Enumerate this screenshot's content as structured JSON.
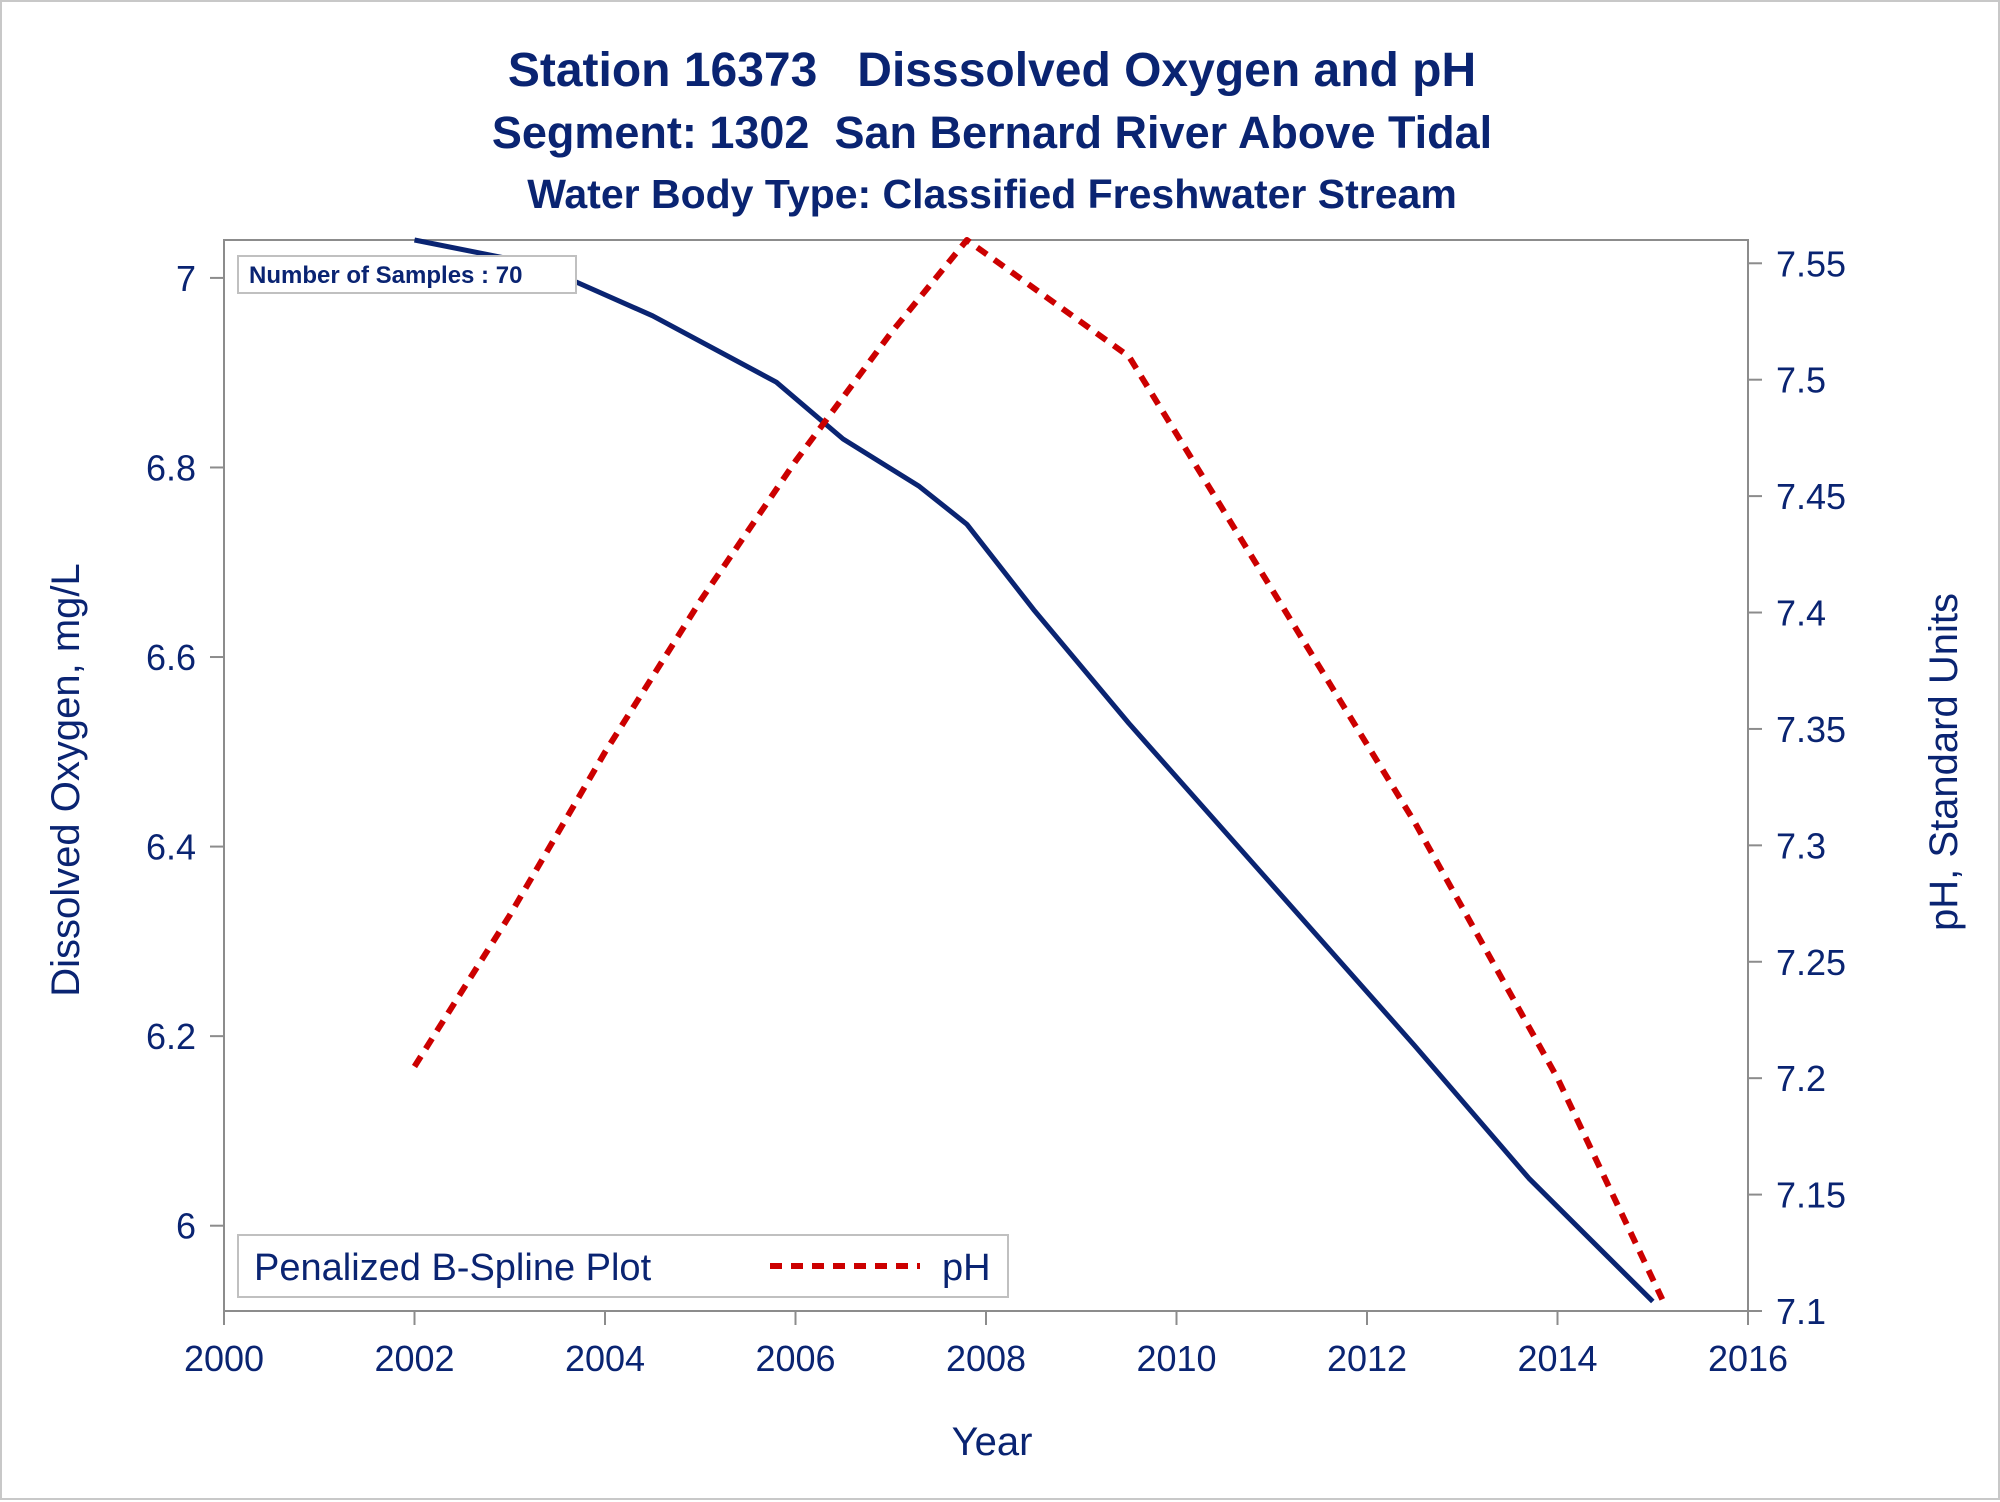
{
  "chart_data": {
    "type": "line",
    "title": "Station 16373   Disssolved Oxygen and pH",
    "subtitle": "Segment: 1302  San Bernard River Above Tidal",
    "subtitle2": "Water Body Type: Classified Freshwater Stream",
    "xlabel": "Year",
    "ylabel": "Dissolved Oxygen, mg/L",
    "y2label": "pH, Standard Units",
    "xlim": [
      2000,
      2016
    ],
    "xticks": [
      "2000",
      "2002",
      "2004",
      "2006",
      "2008",
      "2010",
      "2012",
      "2014",
      "2016"
    ],
    "ylim": [
      5.91,
      7.04
    ],
    "yticks": [
      "6",
      "6.2",
      "6.4",
      "6.6",
      "6.8",
      "7"
    ],
    "y2lim": [
      7.1,
      7.56
    ],
    "y2ticks": [
      "7.1",
      "7.15",
      "7.2",
      "7.25",
      "7.3",
      "7.35",
      "7.4",
      "7.45",
      "7.5",
      "7.55"
    ],
    "annotation": "Number of Samples : 70",
    "legend_position": "bottom-left",
    "legend": {
      "items": [
        {
          "label": "Penalized B-Spline Plot",
          "style": "text"
        },
        {
          "label": "pH",
          "style": "dashed",
          "color": "#cc0000"
        }
      ]
    },
    "series": [
      {
        "axis": "left",
        "color": "#0a2472",
        "style": "solid",
        "x": [
          2002,
          2003,
          2003.6,
          2004.5,
          2005.8,
          2006.5,
          2007.3,
          2007.8,
          2008.5,
          2009.5,
          2011,
          2012.5,
          2013.7,
          2015
        ],
        "y": [
          7.04,
          7.02,
          7.0,
          6.96,
          6.89,
          6.83,
          6.78,
          6.74,
          6.65,
          6.53,
          6.36,
          6.19,
          6.05,
          5.92
        ]
      },
      {
        "name": "pH",
        "axis": "right",
        "color": "#cc0000",
        "style": "dashed",
        "x": [
          2002,
          2003,
          2004,
          2005,
          2006,
          2007,
          2007.8,
          2009.5,
          2011,
          2012.5,
          2014,
          2015.1
        ],
        "y": [
          7.205,
          7.27,
          7.34,
          7.405,
          7.465,
          7.52,
          7.56,
          7.51,
          7.41,
          7.31,
          7.2,
          7.105
        ]
      }
    ]
  }
}
